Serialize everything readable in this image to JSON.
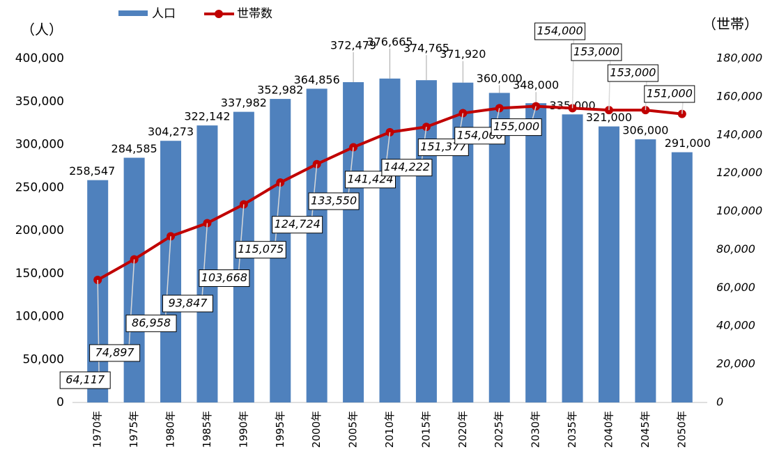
{
  "chart_data": {
    "type": "bar_line",
    "y_label": "（人）",
    "y2_label": "（世帯）",
    "categories": [
      "1970年",
      "1975年",
      "1980年",
      "1985年",
      "1990年",
      "1995年",
      "2000年",
      "2005年",
      "2010年",
      "2015年",
      "2020年",
      "2025年",
      "2030年",
      "2035年",
      "2040年",
      "2045年",
      "2050年"
    ],
    "series": [
      {
        "name": "人口",
        "type": "bar",
        "color": "#4f81bd",
        "values": [
          258547,
          284585,
          304273,
          322142,
          337982,
          352982,
          364856,
          372479,
          376665,
          374765,
          371920,
          360000,
          348000,
          335000,
          321000,
          306000,
          291000
        ],
        "value_labels": [
          "258,547",
          "284,585",
          "304,273",
          "322,142",
          "337,982",
          "352,982",
          "364,856",
          "372,479",
          "376,665",
          "374,765",
          "371,920",
          "360,000",
          "348,000",
          "335,000",
          "321,000",
          "306,000",
          "291,000"
        ]
      },
      {
        "name": "世帯数",
        "type": "line",
        "axis": "y2",
        "color": "#c00000",
        "values": [
          64117,
          74897,
          86958,
          93847,
          103668,
          115075,
          124724,
          133550,
          141424,
          144222,
          151377,
          154000,
          155000,
          154000,
          153000,
          153000,
          151000
        ],
        "value_labels": [
          "64,117",
          "74,897",
          "86,958",
          "93,847",
          "103,668",
          "115,075",
          "124,724",
          "133,550",
          "141,424",
          "144,222",
          "151,377",
          "154,000",
          "155,000",
          "154,000",
          "153,000",
          "153,000",
          "151,000"
        ]
      }
    ],
    "ylim": [
      0,
      400000
    ],
    "yticks": [
      0,
      {
        "value": 50000,
        "label": "50,000"
      },
      {
        "value": 100000,
        "label": "100,000"
      },
      {
        "value": 150000,
        "label": "150,000"
      },
      {
        "value": 200000,
        "label": "200,000"
      },
      {
        "value": 250000,
        "label": "250,000"
      },
      {
        "value": 300000,
        "label": "300,000"
      },
      {
        "value": 350000,
        "label": "350,000"
      },
      {
        "value": 400000,
        "label": "400,000"
      }
    ],
    "y2lim": [
      0,
      180000
    ],
    "y2ticks": [
      0,
      {
        "value": 20000,
        "label": "20,000"
      },
      {
        "value": 40000,
        "label": "40,000"
      },
      {
        "value": 60000,
        "label": "60,000"
      },
      {
        "value": 80000,
        "label": "80,000"
      },
      {
        "value": 100000,
        "label": "100,000"
      },
      {
        "value": 120000,
        "label": "120,000"
      },
      {
        "value": 140000,
        "label": "140,000"
      },
      {
        "value": 160000,
        "label": "160,000"
      },
      {
        "value": 180000,
        "label": "180,000"
      }
    ],
    "legend": "top-left"
  }
}
